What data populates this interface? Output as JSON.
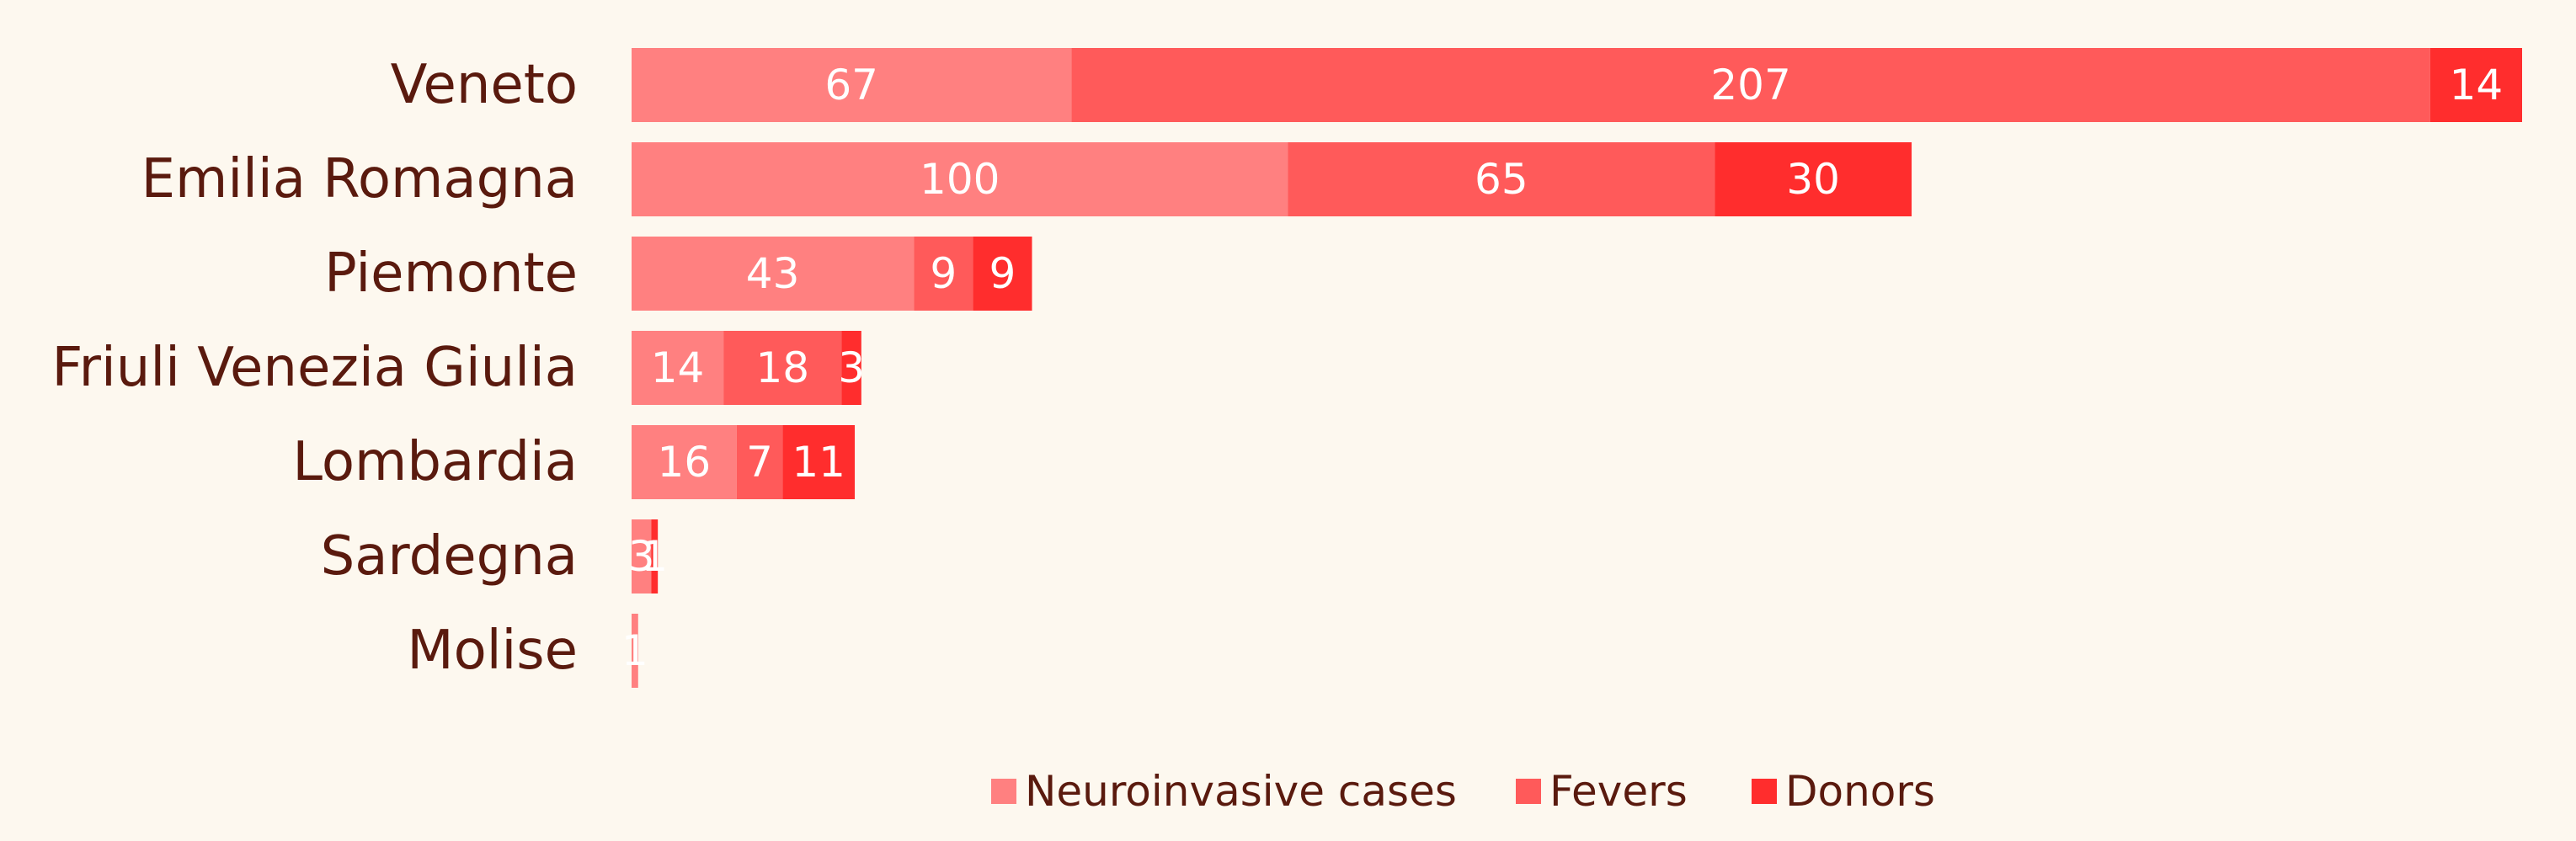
{
  "chart_data": {
    "type": "bar",
    "orientation": "horizontal",
    "stacked": true,
    "categories": [
      "Veneto",
      "Emilia Romagna",
      "Piemonte",
      "Friuli Venezia Giulia",
      "Lombardia",
      "Sardegna",
      "Molise"
    ],
    "series": [
      {
        "name": "Neuroinvasive cases",
        "values": [
          67,
          100,
          43,
          14,
          16,
          3,
          1
        ],
        "color": "#ff8080"
      },
      {
        "name": "Fevers",
        "values": [
          207,
          65,
          9,
          18,
          7,
          0,
          0
        ],
        "color": "#ff5a5a"
      },
      {
        "name": "Donors",
        "values": [
          14,
          30,
          9,
          3,
          11,
          1,
          0
        ],
        "color": "#ff2d2d"
      }
    ],
    "title": "",
    "xlabel": "",
    "ylabel": "",
    "grid": false,
    "legend_position": "bottom",
    "data_labels": true
  },
  "colors": {
    "background": "#fdf8ef",
    "label_text": "#5a1a0e",
    "value_text": "#ffffff"
  }
}
